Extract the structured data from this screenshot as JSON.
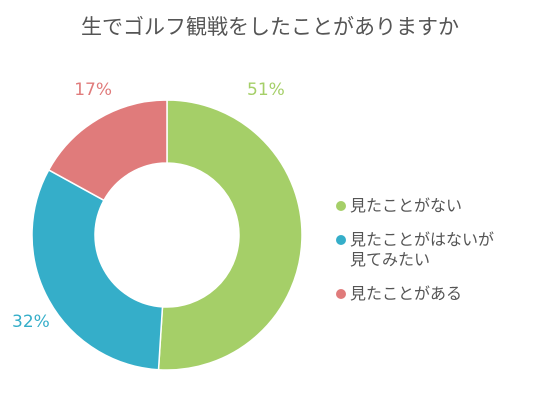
{
  "chart_data": {
    "type": "pie",
    "title": "生でゴルフ観戦をしたことがありますか",
    "series": [
      {
        "name": "見たことがない",
        "value": 51,
        "label": "51%",
        "color": "#a5cf68"
      },
      {
        "name": "見たことがはないが\n見てみたい",
        "value": 32,
        "label": "32%",
        "color": "#35aec9"
      },
      {
        "name": "見たことがある",
        "value": 17,
        "label": "17%",
        "color": "#e07b7b"
      }
    ],
    "legend_position": "right",
    "donut": true
  }
}
